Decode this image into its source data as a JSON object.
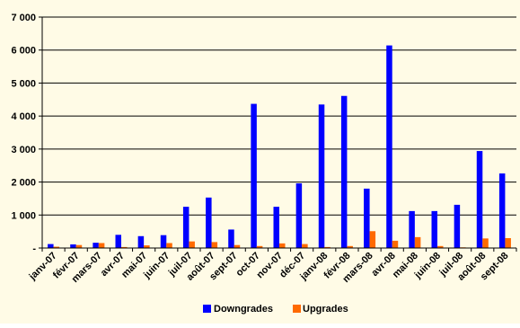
{
  "chart_data": {
    "type": "bar",
    "categories": [
      "janv-07",
      "févr-07",
      "mars-07",
      "avr-07",
      "mai-07",
      "juin-07",
      "juil-07",
      "août-07",
      "sept-07",
      "oct-07",
      "nov-07",
      "déc-07",
      "janv-08",
      "févr-08",
      "mars-08",
      "avr-08",
      "mai-08",
      "juin-08",
      "juil-08",
      "août-08",
      "sept-08"
    ],
    "series": [
      {
        "name": "Downgrades",
        "color": "#0000ff",
        "values": [
          120,
          110,
          160,
          400,
          360,
          390,
          1250,
          1530,
          560,
          4370,
          1250,
          1960,
          4350,
          4610,
          1800,
          6140,
          1120,
          1120,
          1310,
          2940,
          2260
        ]
      },
      {
        "name": "Upgrades",
        "color": "#ff6a00",
        "values": [
          40,
          90,
          150,
          30,
          80,
          150,
          200,
          180,
          90,
          60,
          140,
          120,
          30,
          60,
          510,
          220,
          330,
          60,
          20,
          290,
          300
        ]
      }
    ],
    "yticks": [
      {
        "value": 0,
        "label": "-"
      },
      {
        "value": 1000,
        "label": "1 000"
      },
      {
        "value": 2000,
        "label": "2 000"
      },
      {
        "value": 3000,
        "label": "3 000"
      },
      {
        "value": 4000,
        "label": "4 000"
      },
      {
        "value": 5000,
        "label": "5 000"
      },
      {
        "value": 6000,
        "label": "6 000"
      },
      {
        "value": 7000,
        "label": "7 000"
      }
    ],
    "ylim": [
      0,
      7000
    ],
    "grid": true,
    "legend_position": "bottom"
  }
}
